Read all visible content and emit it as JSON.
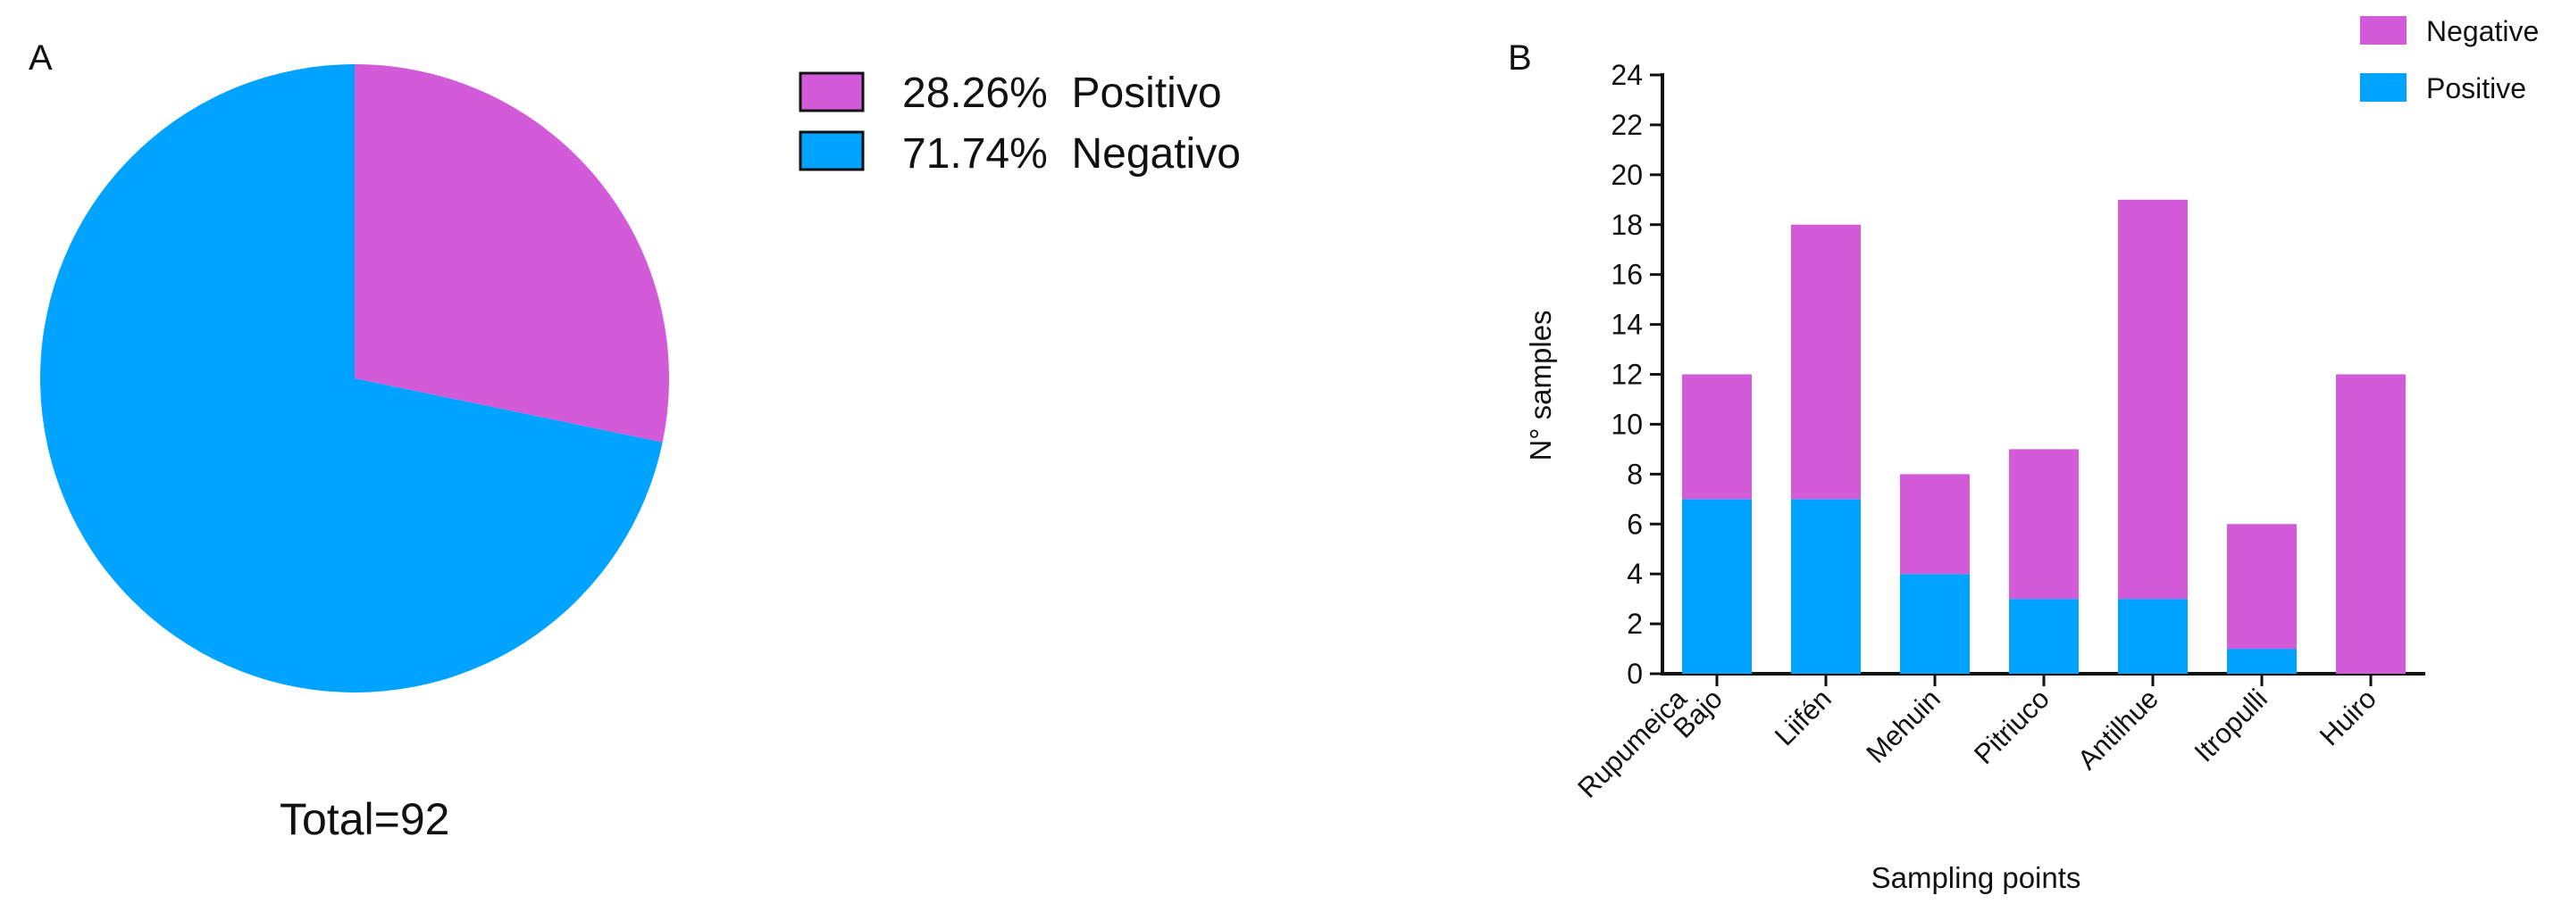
{
  "chart_data": [
    {
      "type": "pie",
      "panel": "A",
      "total": 92,
      "total_label": "Total=92",
      "slices": [
        {
          "label": "Positivo",
          "percent": 28.26,
          "legend_text": "28.26%  Positivo",
          "color": "#d35ad9"
        },
        {
          "label": "Negativo",
          "percent": 71.74,
          "legend_text": "71.74%  Negativo",
          "color": "#00a3ff"
        }
      ]
    },
    {
      "type": "bar",
      "stacked": true,
      "panel": "B",
      "xlabel": "Sampling points",
      "ylabel": "N° samples",
      "ylim": [
        0,
        24
      ],
      "yticks": [
        0,
        2,
        4,
        6,
        8,
        10,
        12,
        14,
        16,
        18,
        20,
        22,
        24
      ],
      "categories": [
        [
          "Rupumeica",
          "Bajo"
        ],
        [
          "Liifén"
        ],
        [
          "Mehuin"
        ],
        [
          "Pitriuco"
        ],
        [
          "Antilhue"
        ],
        [
          "Itropulli"
        ],
        [
          "Huiro"
        ]
      ],
      "series": [
        {
          "name": "Positive",
          "color": "#00a3ff",
          "values": [
            7,
            7,
            4,
            3,
            3,
            1,
            0
          ]
        },
        {
          "name": "Negative",
          "color": "#d35ad9",
          "values": [
            5,
            11,
            4,
            6,
            16,
            5,
            12
          ]
        }
      ],
      "legend": [
        {
          "label": "Negative",
          "color": "#d35ad9"
        },
        {
          "label": "Positive",
          "color": "#00a3ff"
        }
      ]
    }
  ]
}
